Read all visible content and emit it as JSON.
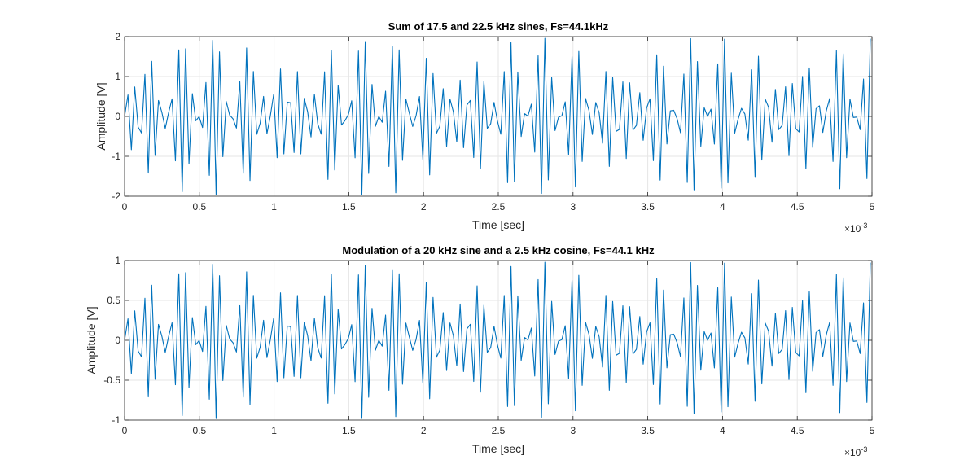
{
  "figure": {
    "background": "#ffffff",
    "line_color": "#0072BD",
    "grid_color": "#e6e6e6",
    "axes_color": "#262626"
  },
  "chart_data": [
    {
      "type": "line",
      "title": "Sum of 17.5 and 22.5 kHz sines, Fs=44.1kHz",
      "xlabel": "Time [sec]",
      "ylabel": "Amplitude [V]",
      "x_exponent_base": "10",
      "x_exponent": "-3",
      "xlim": [
        0,
        5
      ],
      "ylim": [
        -2,
        2
      ],
      "grid": true,
      "xticks": [
        0,
        0.5,
        1,
        1.5,
        2,
        2.5,
        3,
        3.5,
        4,
        4.5,
        5
      ],
      "xtick_labels": [
        "0",
        "0.5",
        "1",
        "1.5",
        "2",
        "2.5",
        "3",
        "3.5",
        "4",
        "4.5",
        "5"
      ],
      "yticks": [
        -2,
        -1,
        0,
        1,
        2
      ],
      "ytick_labels": [
        "-2",
        "-1",
        "0",
        "1",
        "2"
      ],
      "series": [
        {
          "formula": "sin(2*pi*17500*t) + sin(2*pi*22500*t)",
          "sample_rate_hz": 44100,
          "x_unit_scale": 1000,
          "sample_count": 221
        }
      ]
    },
    {
      "type": "line",
      "title": "Modulation of a 20 kHz sine and a 2.5 kHz cosine, Fs=44.1 kHz",
      "xlabel": "Time [sec]",
      "ylabel": "Amplitude [V]",
      "x_exponent_base": "10",
      "x_exponent": "-3",
      "xlim": [
        0,
        5
      ],
      "ylim": [
        -1,
        1
      ],
      "grid": true,
      "xticks": [
        0,
        0.5,
        1,
        1.5,
        2,
        2.5,
        3,
        3.5,
        4,
        4.5,
        5
      ],
      "xtick_labels": [
        "0",
        "0.5",
        "1",
        "1.5",
        "2",
        "2.5",
        "3",
        "3.5",
        "4",
        "4.5",
        "5"
      ],
      "yticks": [
        -1,
        -0.5,
        0,
        0.5,
        1
      ],
      "ytick_labels": [
        "-1",
        "-0.5",
        "0",
        "0.5",
        "1"
      ],
      "series": [
        {
          "formula": "sin(2*pi*20000*t) * cos(2*pi*2500*t)",
          "sample_rate_hz": 44100,
          "x_unit_scale": 1000,
          "sample_count": 221
        }
      ]
    }
  ]
}
